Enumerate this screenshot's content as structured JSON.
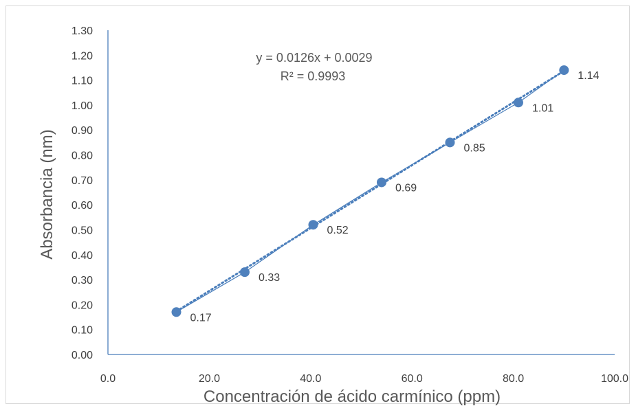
{
  "chart_data": {
    "type": "scatter",
    "title": "",
    "xlabel": "Concentración de ácido carmínico (ppm)",
    "ylabel": "Absorbancia (nm)",
    "xlim": [
      0,
      100
    ],
    "ylim": [
      0,
      1.3
    ],
    "x_ticks": [
      "0.0",
      "20.0",
      "40.0",
      "60.0",
      "80.0",
      "100.0"
    ],
    "y_ticks": [
      "0.00",
      "0.10",
      "0.20",
      "0.30",
      "0.40",
      "0.50",
      "0.60",
      "0.70",
      "0.80",
      "0.90",
      "1.00",
      "1.10",
      "1.20",
      "1.30"
    ],
    "grid": false,
    "legend": "none",
    "series": [
      {
        "x": [
          13.5,
          27.0,
          40.5,
          54.0,
          67.5,
          81.0,
          90.0
        ],
        "y": [
          0.17,
          0.33,
          0.52,
          0.69,
          0.85,
          1.01,
          1.14
        ],
        "data_labels": [
          "0.17",
          "0.33",
          "0.52",
          "0.69",
          "0.85",
          "1.01",
          "1.14"
        ],
        "color": "#4f81bd"
      }
    ],
    "trendline": {
      "type": "linear",
      "slope": 0.0126,
      "intercept": 0.0029,
      "style": "dotted",
      "equation": "y = 0.0126x + 0.0029",
      "r2": "R² = 0.9993"
    }
  }
}
